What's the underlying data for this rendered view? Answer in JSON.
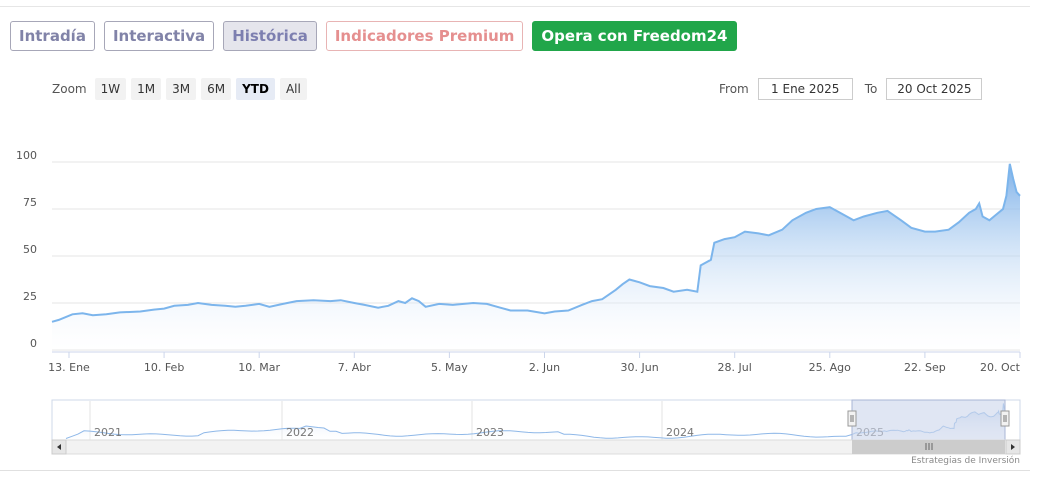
{
  "tabs": [
    {
      "label": "Intradía"
    },
    {
      "label": "Interactiva"
    },
    {
      "label": "Histórica"
    },
    {
      "label": "Indicadores Premium"
    },
    {
      "label": "Opera con Freedom24"
    }
  ],
  "zoom": {
    "label": "Zoom",
    "buttons": [
      "1W",
      "1M",
      "3M",
      "6M",
      "YTD",
      "All"
    ],
    "selected": "YTD"
  },
  "range": {
    "from_label": "From",
    "from_value": "1 Ene 2025",
    "to_label": "To",
    "to_value": "20 Oct 2025"
  },
  "colors": {
    "line": "#7cb5ec",
    "area_top": "#6fa8e6",
    "grid": "#e6e6e6",
    "navigator_mask": "#ccd6eb"
  },
  "chart_data": {
    "type": "area",
    "ylim": [
      0,
      100
    ],
    "yticks": [
      "0",
      "25",
      "50",
      "75",
      "100"
    ],
    "xlim": [
      "2025-01-08",
      "2025-10-20"
    ],
    "xticks": [
      {
        "date": "2025-01-13",
        "label": "13. Ene"
      },
      {
        "date": "2025-02-10",
        "label": "10. Feb"
      },
      {
        "date": "2025-03-10",
        "label": "10. Mar"
      },
      {
        "date": "2025-04-07",
        "label": "7. Abr"
      },
      {
        "date": "2025-05-05",
        "label": "5. May"
      },
      {
        "date": "2025-06-02",
        "label": "2. Jun"
      },
      {
        "date": "2025-06-30",
        "label": "30. Jun"
      },
      {
        "date": "2025-07-28",
        "label": "28. Jul"
      },
      {
        "date": "2025-08-25",
        "label": "25. Ago"
      },
      {
        "date": "2025-09-22",
        "label": "22. Sep"
      },
      {
        "date": "2025-10-20",
        "label": "20. Oct"
      }
    ],
    "points": [
      [
        "2025-01-08",
        15
      ],
      [
        "2025-01-10",
        16
      ],
      [
        "2025-01-14",
        19
      ],
      [
        "2025-01-17",
        19.5
      ],
      [
        "2025-01-20",
        18.5
      ],
      [
        "2025-01-24",
        19
      ],
      [
        "2025-01-28",
        20
      ],
      [
        "2025-02-03",
        20.5
      ],
      [
        "2025-02-07",
        21.5
      ],
      [
        "2025-02-10",
        22
      ],
      [
        "2025-02-13",
        23.5
      ],
      [
        "2025-02-17",
        24
      ],
      [
        "2025-02-20",
        25
      ],
      [
        "2025-02-24",
        24
      ],
      [
        "2025-02-28",
        23.5
      ],
      [
        "2025-03-03",
        23
      ],
      [
        "2025-03-06",
        23.5
      ],
      [
        "2025-03-10",
        24.5
      ],
      [
        "2025-03-13",
        23
      ],
      [
        "2025-03-17",
        24.5
      ],
      [
        "2025-03-21",
        26
      ],
      [
        "2025-03-26",
        26.5
      ],
      [
        "2025-03-31",
        26
      ],
      [
        "2025-04-03",
        26.5
      ],
      [
        "2025-04-07",
        25
      ],
      [
        "2025-04-10",
        24
      ],
      [
        "2025-04-14",
        22.5
      ],
      [
        "2025-04-17",
        23.5
      ],
      [
        "2025-04-20",
        26
      ],
      [
        "2025-04-22",
        25
      ],
      [
        "2025-04-24",
        27.5
      ],
      [
        "2025-04-26",
        26
      ],
      [
        "2025-04-28",
        23
      ],
      [
        "2025-05-02",
        24.5
      ],
      [
        "2025-05-06",
        24
      ],
      [
        "2025-05-12",
        25
      ],
      [
        "2025-05-16",
        24.5
      ],
      [
        "2025-05-20",
        22.5
      ],
      [
        "2025-05-23",
        21
      ],
      [
        "2025-05-28",
        21
      ],
      [
        "2025-06-02",
        19.5
      ],
      [
        "2025-06-05",
        20.5
      ],
      [
        "2025-06-09",
        21
      ],
      [
        "2025-06-13",
        24
      ],
      [
        "2025-06-16",
        26
      ],
      [
        "2025-06-19",
        27
      ],
      [
        "2025-06-23",
        32
      ],
      [
        "2025-06-25",
        35
      ],
      [
        "2025-06-27",
        37.5
      ],
      [
        "2025-06-30",
        36
      ],
      [
        "2025-07-03",
        34
      ],
      [
        "2025-07-07",
        33
      ],
      [
        "2025-07-10",
        31
      ],
      [
        "2025-07-14",
        32
      ],
      [
        "2025-07-17",
        31
      ],
      [
        "2025-07-18",
        45
      ],
      [
        "2025-07-21",
        48
      ],
      [
        "2025-07-22",
        57
      ],
      [
        "2025-07-25",
        59
      ],
      [
        "2025-07-28",
        60
      ],
      [
        "2025-07-31",
        63
      ],
      [
        "2025-08-04",
        62
      ],
      [
        "2025-08-07",
        61
      ],
      [
        "2025-08-11",
        64
      ],
      [
        "2025-08-14",
        69
      ],
      [
        "2025-08-18",
        73
      ],
      [
        "2025-08-21",
        75
      ],
      [
        "2025-08-25",
        76
      ],
      [
        "2025-08-28",
        73
      ],
      [
        "2025-09-01",
        69
      ],
      [
        "2025-09-04",
        71
      ],
      [
        "2025-09-08",
        73
      ],
      [
        "2025-09-11",
        74
      ],
      [
        "2025-09-15",
        69
      ],
      [
        "2025-09-18",
        65
      ],
      [
        "2025-09-22",
        63
      ],
      [
        "2025-09-25",
        63
      ],
      [
        "2025-09-29",
        64
      ],
      [
        "2025-10-02",
        68
      ],
      [
        "2025-10-05",
        73
      ],
      [
        "2025-10-07",
        75
      ],
      [
        "2025-10-08",
        78
      ],
      [
        "2025-10-09",
        71
      ],
      [
        "2025-10-11",
        69
      ],
      [
        "2025-10-13",
        72
      ],
      [
        "2025-10-15",
        75
      ],
      [
        "2025-10-16",
        82
      ],
      [
        "2025-10-17",
        99
      ],
      [
        "2025-10-18",
        91
      ],
      [
        "2025-10-19",
        84
      ],
      [
        "2025-10-20",
        82
      ]
    ],
    "navigator": {
      "year_labels": [
        "2021",
        "2022",
        "2023",
        "2024",
        "2025"
      ]
    }
  },
  "credit": "Estrategias de Inversión"
}
